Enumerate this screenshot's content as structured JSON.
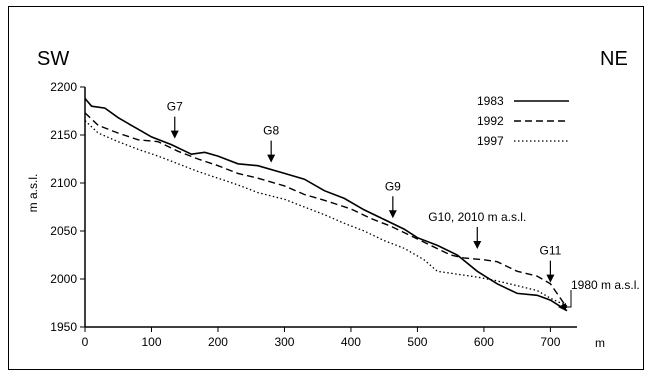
{
  "chart_data": {
    "type": "line",
    "xlabel": "m",
    "ylabel": "m a.s.l.",
    "xlim": [
      0,
      740
    ],
    "ylim": [
      1950,
      2200
    ],
    "x_ticks": [
      "0",
      "100",
      "200",
      "300",
      "400",
      "500",
      "600",
      "700"
    ],
    "y_ticks": [
      "1950",
      "2000",
      "2050",
      "2100",
      "2150",
      "2200"
    ],
    "left_direction": "SW",
    "right_direction": "NE",
    "legend_position": "top-right",
    "series": [
      {
        "name": "1983",
        "dash": "solid",
        "points": [
          [
            0,
            2188
          ],
          [
            10,
            2180
          ],
          [
            30,
            2178
          ],
          [
            50,
            2168
          ],
          [
            70,
            2160
          ],
          [
            100,
            2148
          ],
          [
            130,
            2140
          ],
          [
            160,
            2130
          ],
          [
            180,
            2132
          ],
          [
            200,
            2128
          ],
          [
            230,
            2120
          ],
          [
            260,
            2118
          ],
          [
            300,
            2110
          ],
          [
            330,
            2104
          ],
          [
            360,
            2092
          ],
          [
            390,
            2084
          ],
          [
            420,
            2072
          ],
          [
            450,
            2062
          ],
          [
            480,
            2052
          ],
          [
            500,
            2043
          ],
          [
            530,
            2035
          ],
          [
            560,
            2025
          ],
          [
            590,
            2008
          ],
          [
            620,
            1995
          ],
          [
            650,
            1985
          ],
          [
            680,
            1983
          ],
          [
            700,
            1978
          ],
          [
            725,
            1967
          ]
        ]
      },
      {
        "name": "1992",
        "dash": "dashed",
        "points": [
          [
            0,
            2173
          ],
          [
            20,
            2160
          ],
          [
            50,
            2152
          ],
          [
            80,
            2145
          ],
          [
            110,
            2143
          ],
          [
            140,
            2133
          ],
          [
            170,
            2125
          ],
          [
            200,
            2118
          ],
          [
            230,
            2110
          ],
          [
            260,
            2105
          ],
          [
            300,
            2097
          ],
          [
            330,
            2088
          ],
          [
            360,
            2082
          ],
          [
            400,
            2073
          ],
          [
            430,
            2063
          ],
          [
            460,
            2055
          ],
          [
            490,
            2045
          ],
          [
            520,
            2035
          ],
          [
            550,
            2025
          ],
          [
            570,
            2022
          ],
          [
            600,
            2020
          ],
          [
            620,
            2018
          ],
          [
            650,
            2008
          ],
          [
            680,
            2003
          ],
          [
            700,
            1995
          ],
          [
            725,
            1970
          ]
        ]
      },
      {
        "name": "1997",
        "dash": "dotted",
        "points": [
          [
            0,
            2165
          ],
          [
            20,
            2152
          ],
          [
            50,
            2143
          ],
          [
            80,
            2135
          ],
          [
            110,
            2128
          ],
          [
            140,
            2120
          ],
          [
            170,
            2112
          ],
          [
            200,
            2105
          ],
          [
            230,
            2098
          ],
          [
            260,
            2090
          ],
          [
            300,
            2083
          ],
          [
            330,
            2075
          ],
          [
            360,
            2067
          ],
          [
            390,
            2058
          ],
          [
            420,
            2050
          ],
          [
            450,
            2040
          ],
          [
            480,
            2032
          ],
          [
            510,
            2020
          ],
          [
            530,
            2008
          ],
          [
            560,
            2005
          ],
          [
            590,
            2002
          ],
          [
            620,
            1998
          ],
          [
            650,
            1993
          ],
          [
            680,
            1988
          ],
          [
            700,
            1980
          ],
          [
            725,
            1972
          ]
        ]
      }
    ],
    "annotations": [
      {
        "label": "G7",
        "x": 135,
        "arrow_tip_y": 2140
      },
      {
        "label": "G8",
        "x": 280,
        "arrow_tip_y": 2115
      },
      {
        "label": "G9",
        "x": 463,
        "arrow_tip_y": 2057
      },
      {
        "label": "G10, 2010 m a.s.l.",
        "x": 590,
        "arrow_tip_y": 2025
      },
      {
        "label": "G11",
        "x": 700,
        "arrow_tip_y": 1990
      },
      {
        "label": "1980 m a.s.l.",
        "x": 720,
        "arrow_tip_y": 1980
      }
    ]
  }
}
